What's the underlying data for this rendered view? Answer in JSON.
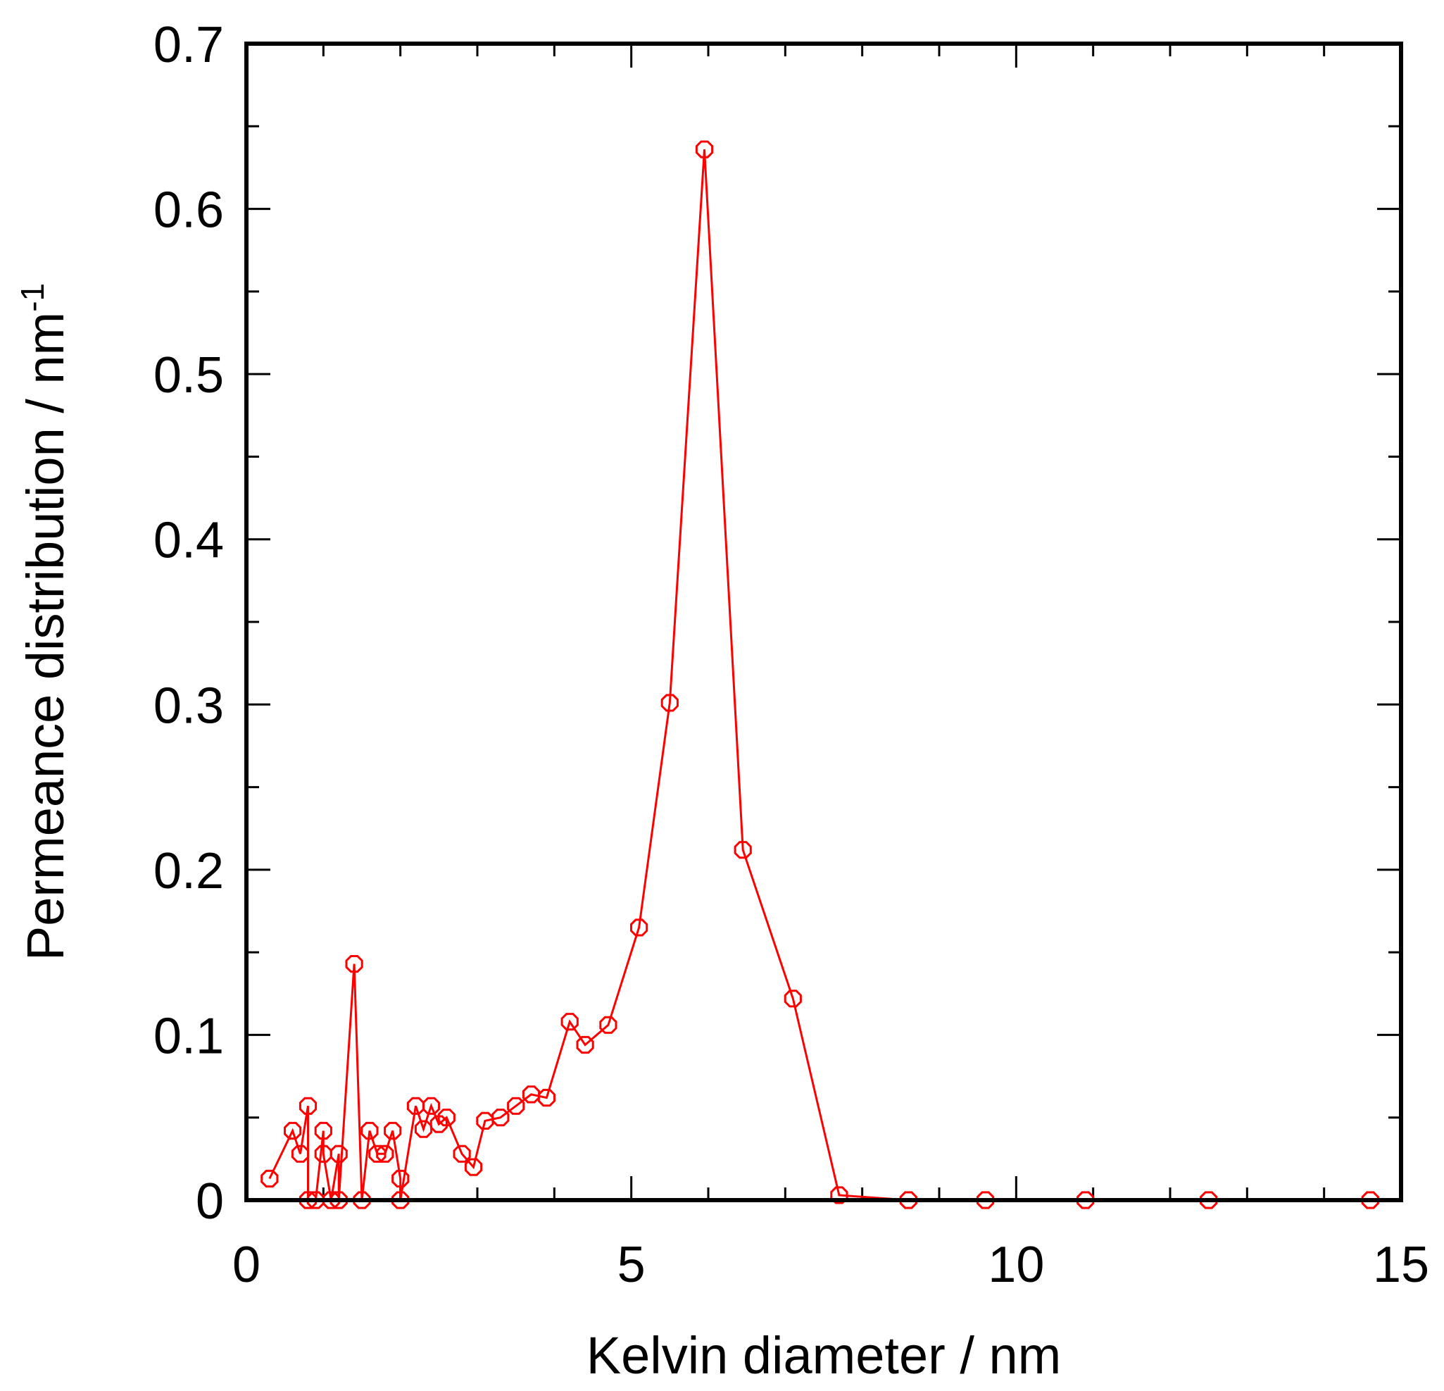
{
  "chart_data": {
    "type": "line",
    "xlabel": "Kelvin diameter / nm",
    "ylabel": "Permeance distribution / nm",
    "ylabel_superscript": "-1",
    "xlim": [
      0,
      15
    ],
    "ylim": [
      0,
      0.7
    ],
    "x_ticks": [
      "0",
      "5",
      "10",
      "15"
    ],
    "x_tick_values": [
      0,
      5,
      10,
      15
    ],
    "x_minor_step": 1,
    "y_ticks": [
      "0",
      "0.1",
      "0.2",
      "0.3",
      "0.4",
      "0.5",
      "0.6",
      "0.7"
    ],
    "y_tick_values": [
      0,
      0.1,
      0.2,
      0.3,
      0.4,
      0.5,
      0.6,
      0.7
    ],
    "y_minor_step": 0.05,
    "grid": false,
    "marker": "open-octagon",
    "color": "#ff0000",
    "series": [
      {
        "x": [
          0.3,
          0.6,
          0.7,
          0.8,
          0.8,
          0.9,
          1.0,
          1.0,
          1.1,
          1.2,
          1.2,
          1.4,
          1.5,
          1.6,
          1.7,
          1.8,
          1.9,
          2.0,
          2.0,
          2.2,
          2.3,
          2.4,
          2.5,
          2.6,
          2.8,
          2.95,
          3.1,
          3.3,
          3.5,
          3.7,
          3.9,
          4.2,
          4.4,
          4.7,
          5.1,
          5.5,
          5.95,
          6.45,
          7.1,
          7.7,
          8.6,
          9.6,
          10.9,
          12.5,
          14.6
        ],
        "y": [
          0.013,
          0.042,
          0.028,
          0.057,
          0.0,
          0.0,
          0.042,
          0.028,
          0.0,
          0.028,
          0.0,
          0.143,
          0.0,
          0.042,
          0.028,
          0.028,
          0.042,
          0.013,
          0.0,
          0.057,
          0.043,
          0.057,
          0.046,
          0.05,
          0.028,
          0.02,
          0.048,
          0.05,
          0.057,
          0.064,
          0.062,
          0.108,
          0.094,
          0.106,
          0.165,
          0.301,
          0.636,
          0.212,
          0.122,
          0.003,
          0.0,
          0.0,
          0.0,
          0.0,
          0.0
        ]
      }
    ]
  }
}
